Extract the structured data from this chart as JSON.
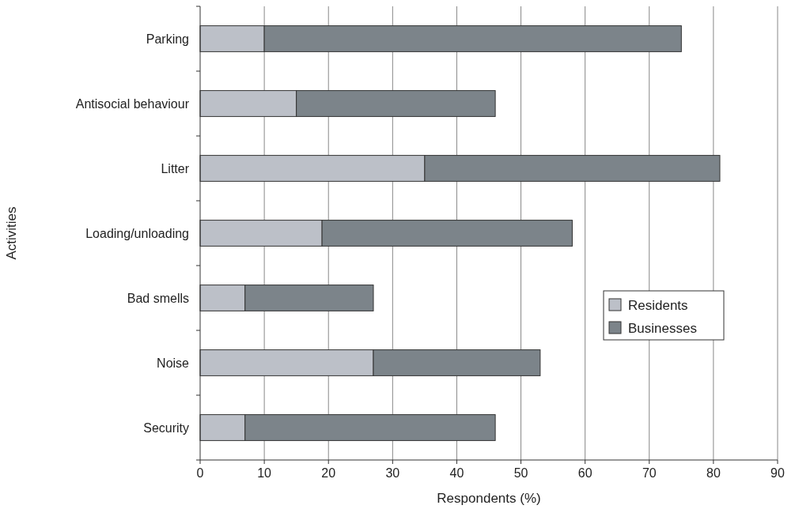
{
  "chart_data": {
    "type": "bar",
    "orientation": "horizontal",
    "stacked": true,
    "xlabel": "Respondents (%)",
    "ylabel": "Activities",
    "categories": [
      "Parking",
      "Antisocial behaviour",
      "Litter",
      "Loading/unloading",
      "Bad smells",
      "Noise",
      "Security"
    ],
    "series": [
      {
        "name": "Residents",
        "color": "#bcc0c8",
        "values": [
          10,
          15,
          35,
          19,
          7,
          27,
          7
        ]
      },
      {
        "name": "Businesses",
        "color": "#7c848a",
        "values": [
          65,
          31,
          46,
          39,
          20,
          26,
          39
        ]
      }
    ],
    "xlim": [
      0,
      90
    ],
    "xticks": [
      0,
      10,
      20,
      30,
      40,
      50,
      60,
      70,
      80,
      90
    ],
    "grid": "x",
    "legend": "right"
  }
}
